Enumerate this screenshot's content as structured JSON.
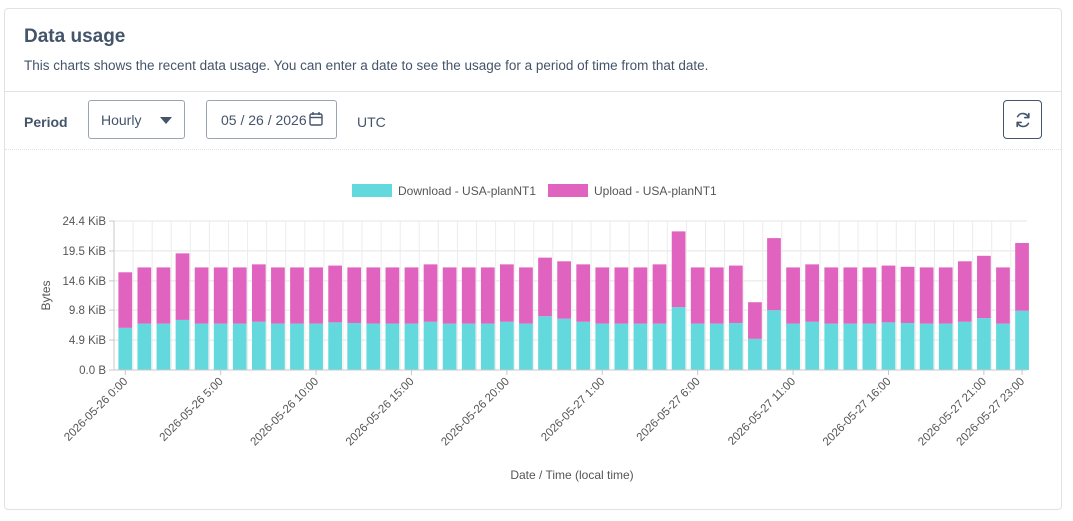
{
  "card": {
    "title": "Data usage",
    "description": "This charts shows the recent data usage. You can enter a date to see the usage for a period of time from that date."
  },
  "controls": {
    "period_label": "Period",
    "period_value": "Hourly",
    "date_value": "05 / 26 / 2026",
    "timezone": "UTC",
    "refresh_icon": "refresh-icon",
    "calendar_icon": "calendar-icon"
  },
  "chart_data": {
    "type": "bar",
    "stacked": true,
    "xlabel": "Date / Time (local time)",
    "ylabel": "Bytes",
    "ylim": [
      0,
      24.4
    ],
    "y_ticks": [
      "0.0 B",
      "4.9 KiB",
      "9.8 KiB",
      "14.6 KiB",
      "19.5 KiB",
      "24.4 KiB"
    ],
    "y_tick_values": [
      0,
      4.9,
      9.8,
      14.6,
      19.5,
      24.4
    ],
    "legend_position": "top-center",
    "x_tick_labels": [
      "2026-05-26 0:00",
      "2026-05-26 5:00",
      "2026-05-26 10:00",
      "2026-05-26 15:00",
      "2026-05-26 20:00",
      "2026-05-27 1:00",
      "2026-05-27 6:00",
      "2026-05-27 11:00",
      "2026-05-27 16:00",
      "2026-05-27 21:00",
      "2026-05-27 23:00"
    ],
    "x_tick_hours": [
      0,
      5,
      10,
      15,
      20,
      25,
      30,
      35,
      40,
      45,
      47
    ],
    "hours": [
      0,
      1,
      2,
      3,
      4,
      5,
      6,
      7,
      8,
      9,
      10,
      11,
      12,
      13,
      14,
      15,
      16,
      17,
      18,
      19,
      20,
      21,
      22,
      23,
      24,
      25,
      26,
      27,
      28,
      29,
      30,
      31,
      32,
      33,
      34,
      35,
      36,
      37,
      38,
      39,
      40,
      41,
      42,
      43,
      44,
      45,
      46,
      47
    ],
    "series": [
      {
        "name": "Download - USA-planNT1",
        "color": "#63d8dd",
        "values": [
          6.9,
          7.6,
          7.6,
          8.2,
          7.6,
          7.6,
          7.6,
          7.9,
          7.6,
          7.6,
          7.6,
          7.8,
          7.7,
          7.6,
          7.6,
          7.6,
          7.9,
          7.6,
          7.6,
          7.6,
          7.9,
          7.6,
          8.8,
          8.4,
          7.9,
          7.6,
          7.6,
          7.6,
          7.6,
          10.3,
          7.6,
          7.6,
          7.7,
          5.1,
          9.8,
          7.6,
          7.9,
          7.6,
          7.6,
          7.6,
          7.8,
          7.7,
          7.6,
          7.6,
          7.9,
          8.5,
          7.6,
          9.7
        ]
      },
      {
        "name": "Upload - USA-planNT1",
        "color": "#e064bf",
        "values": [
          9.1,
          9.2,
          9.2,
          10.9,
          9.2,
          9.2,
          9.2,
          9.4,
          9.2,
          9.2,
          9.2,
          9.3,
          9.1,
          9.2,
          9.2,
          9.2,
          9.4,
          9.2,
          9.2,
          9.2,
          9.4,
          9.2,
          9.6,
          9.4,
          9.4,
          9.2,
          9.2,
          9.2,
          9.7,
          12.4,
          9.2,
          9.2,
          9.4,
          6.0,
          11.8,
          9.2,
          9.4,
          9.2,
          9.2,
          9.2,
          9.3,
          9.2,
          9.2,
          9.2,
          9.9,
          10.2,
          9.2,
          11.1
        ]
      }
    ]
  }
}
